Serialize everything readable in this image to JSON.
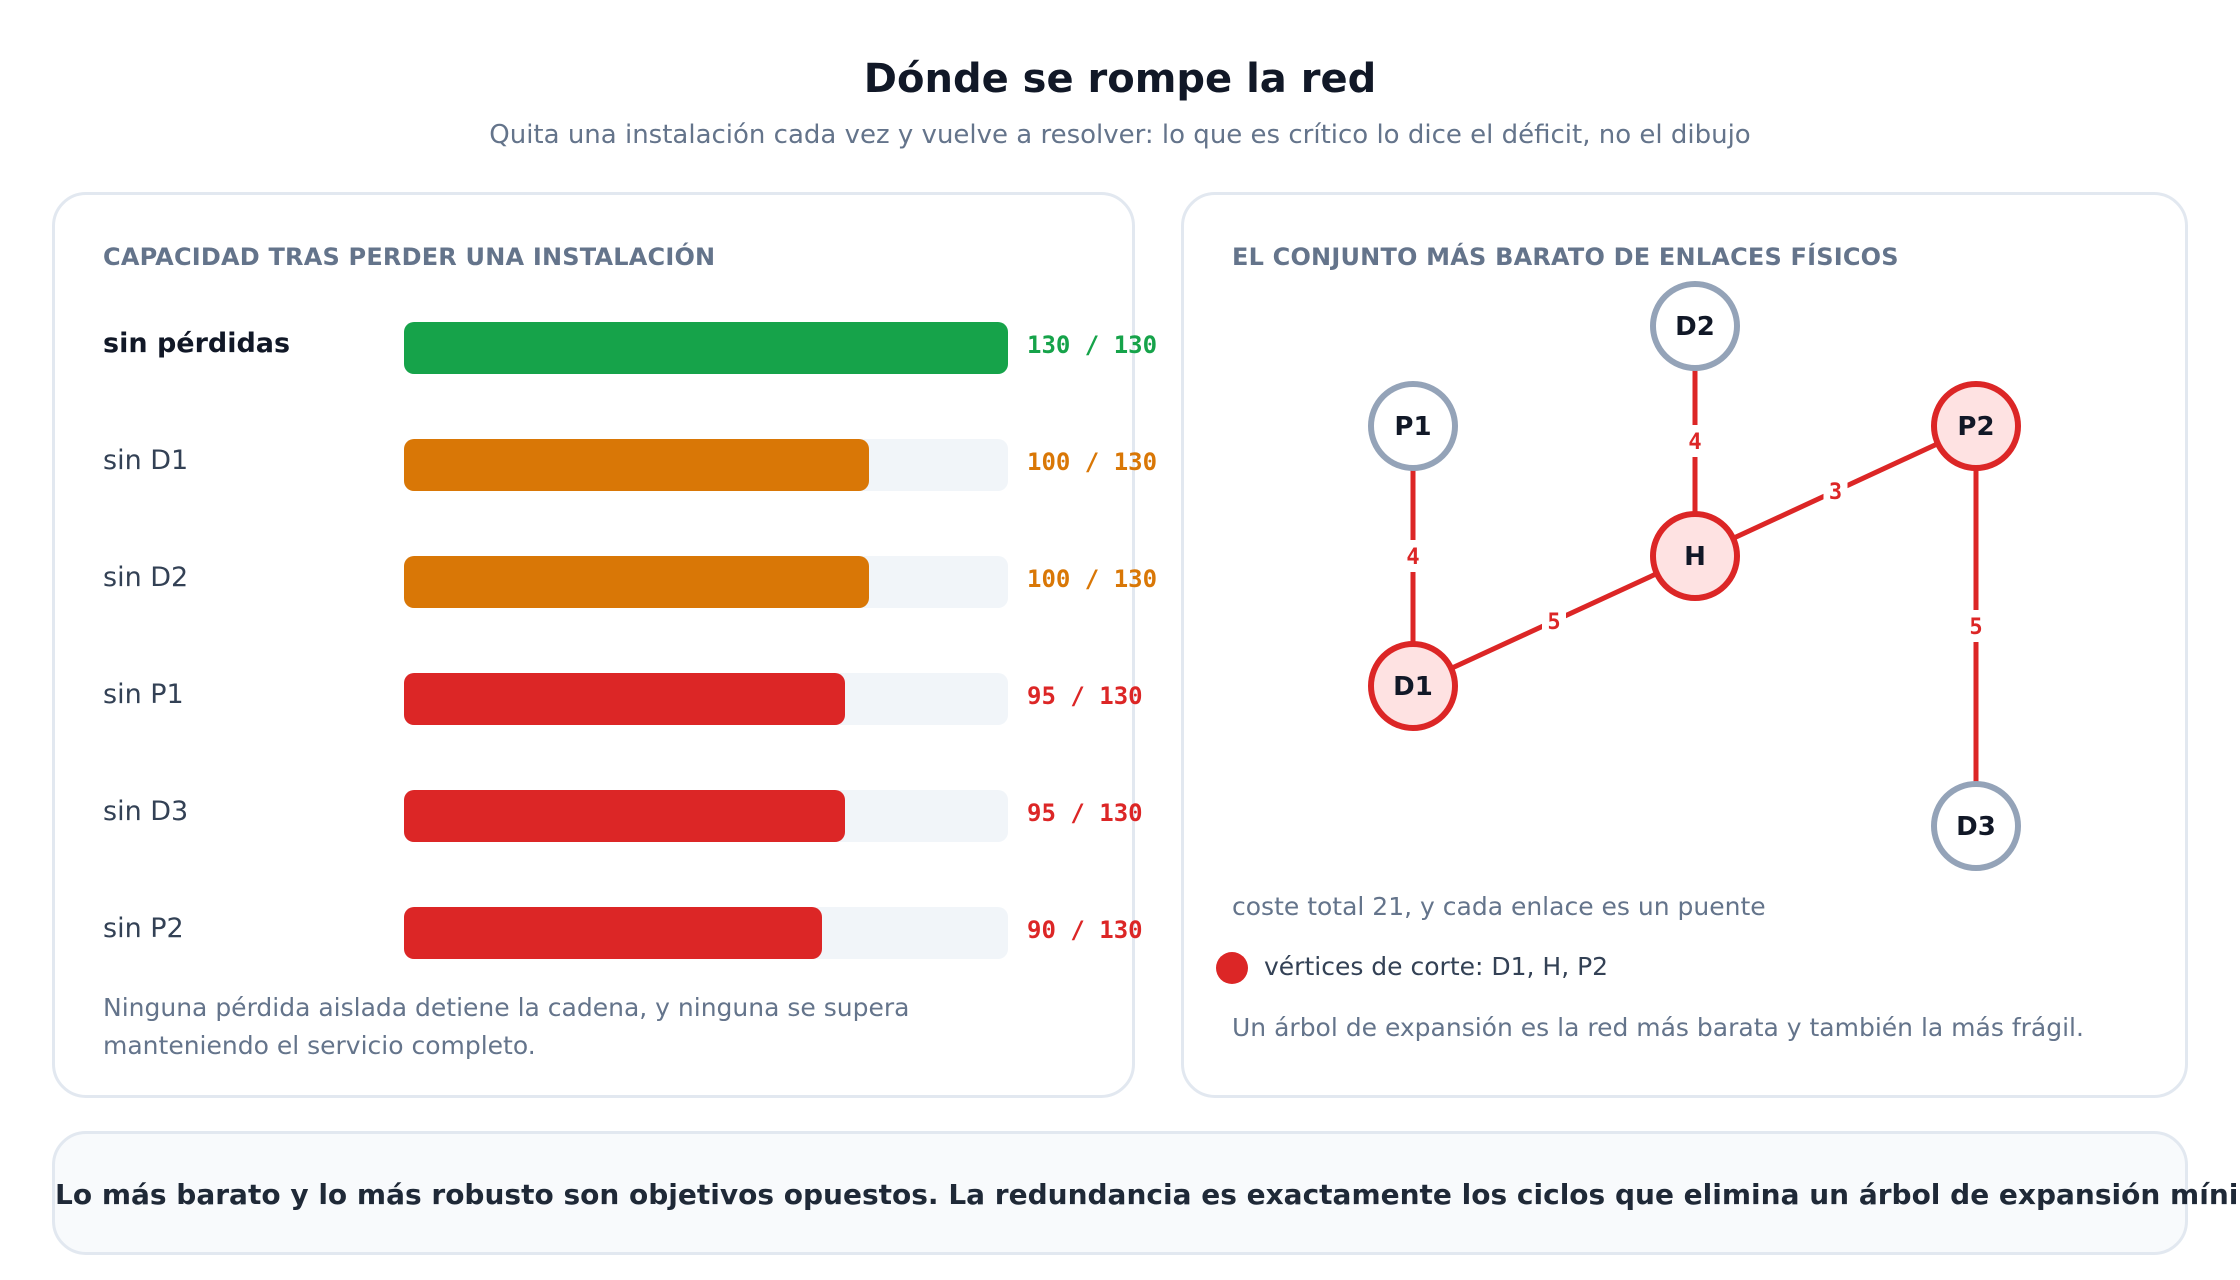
{
  "header": {
    "title": "Dónde se rompe la red",
    "subtitle": "Quita una instalación cada vez y vuelve a resolver: lo que es crítico lo dice el déficit, no el dibujo"
  },
  "left_panel": {
    "heading": "CAPACIDAD TRAS PERDER UNA INSTALACIÓN",
    "note": "Ninguna pérdida aislada detiene la cadena, y ninguna se supera manteniendo el servicio completo."
  },
  "right_panel": {
    "heading": "EL CONJUNTO MÁS BARATO DE ENLACES FÍSICOS",
    "cost_text": "coste total 21, y cada enlace es un puente",
    "legend_text": "vértices de corte: D1, H, P2",
    "note": "Un árbol de expansión es la red más barata y también la más frágil."
  },
  "takeaway": "Lo más barato y lo más robusto son objetivos opuestos. La redundancia es exactamente los ciclos que elimina un árbol de expansión mínimo.",
  "colors": {
    "green": "#16a34a",
    "orange": "#d97706",
    "red": "#dc2626",
    "gray_node": "#94a3b8",
    "track": "#f1f5f9"
  },
  "chart_data": [
    {
      "type": "bar",
      "orientation": "horizontal",
      "title": "CAPACIDAD TRAS PERDER UNA INSTALACIÓN",
      "categories": [
        "sin pérdidas",
        "sin D1",
        "sin D2",
        "sin P1",
        "sin D3",
        "sin P2"
      ],
      "values": [
        130,
        100,
        100,
        95,
        95,
        90
      ],
      "max": 130,
      "value_labels": [
        "130 / 130",
        "100 / 130",
        "100 / 130",
        "95 / 130",
        "95 / 130",
        "90 / 130"
      ],
      "bar_colors": [
        "#16a34a",
        "#d97706",
        "#d97706",
        "#dc2626",
        "#dc2626",
        "#dc2626"
      ]
    },
    {
      "type": "network",
      "title": "EL CONJUNTO MÁS BARATO DE ENLACES FÍSICOS",
      "nodes": [
        {
          "id": "P1",
          "critical": false
        },
        {
          "id": "D2",
          "critical": false
        },
        {
          "id": "P2",
          "critical": true
        },
        {
          "id": "H",
          "critical": true
        },
        {
          "id": "D1",
          "critical": true
        },
        {
          "id": "D3",
          "critical": false
        }
      ],
      "edges": [
        {
          "from": "P1",
          "to": "D1",
          "weight": 4
        },
        {
          "from": "D2",
          "to": "H",
          "weight": 4
        },
        {
          "from": "H",
          "to": "P2",
          "weight": 3
        },
        {
          "from": "D1",
          "to": "H",
          "weight": 5
        },
        {
          "from": "P2",
          "to": "D3",
          "weight": 5
        }
      ],
      "total_cost": 21
    }
  ]
}
